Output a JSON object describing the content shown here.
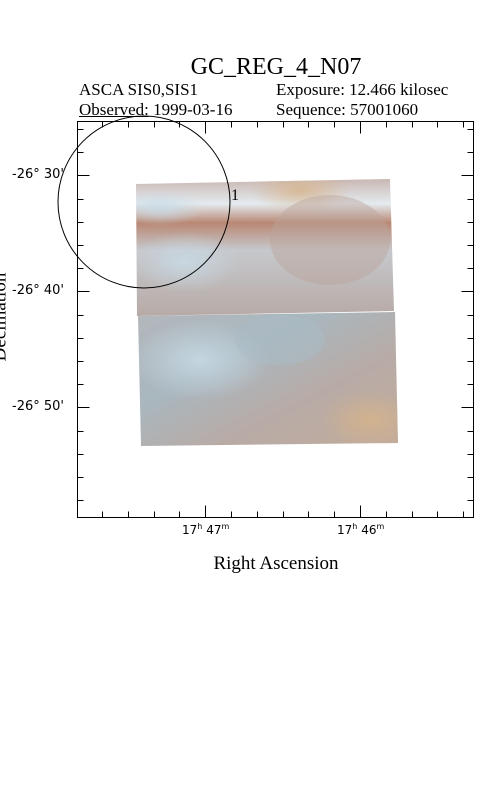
{
  "header": {
    "title": "GC_REG_4_N07",
    "instrument": "ASCA SIS0,SIS1",
    "exposure": "Exposure: 12.466 kilosec",
    "observed_label": "Observed:",
    "observed_date": "1999-03-16",
    "sequence": "Sequence: 57001060"
  },
  "axes": {
    "xlabel": "Right Ascension",
    "ylabel": "Declination",
    "ra_ticks": [
      {
        "h": "17",
        "m": "47"
      },
      {
        "h": "17",
        "m": "46"
      }
    ],
    "dec_ticks": [
      "-26° 30'",
      "-26° 40'",
      "-26° 50'"
    ]
  },
  "source": {
    "label": "1"
  },
  "colors": {
    "frame": "#000000",
    "image_base": "#b4a8a4",
    "image_bright": "#dde6ec",
    "image_warm": "#c7a08a",
    "image_blue": "#aebfc8"
  }
}
